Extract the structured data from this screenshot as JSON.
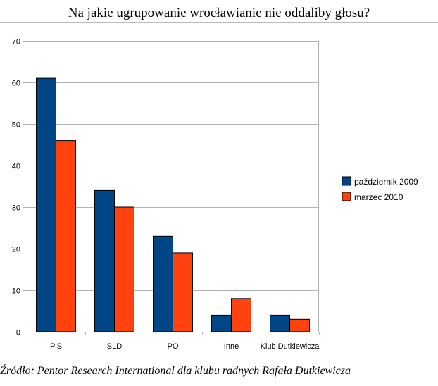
{
  "chart_data": {
    "type": "bar",
    "title": "Na jakie ugrupowanie wrocławianie nie oddaliby głosu?",
    "categories": [
      "PiS",
      "SLD",
      "PO",
      "Inne",
      "Klub Dutkiewicza"
    ],
    "series": [
      {
        "name": "październik 2009",
        "values": [
          61,
          34,
          23,
          4,
          4
        ],
        "color": "#004586"
      },
      {
        "name": "marzec 2010",
        "values": [
          46,
          30,
          19,
          8,
          3
        ],
        "color": "#ff420e"
      }
    ],
    "ylim": [
      0,
      70
    ],
    "yticks": [
      0,
      10,
      20,
      30,
      40,
      50,
      60,
      70
    ],
    "grid": true,
    "legend": "right"
  },
  "source": "Źródło: Pentor Research International dla klubu radnych Rafała Dutkiewicza"
}
